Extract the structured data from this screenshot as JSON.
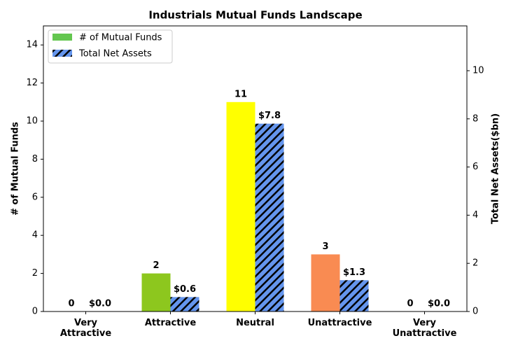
{
  "chart_data": {
    "type": "bar",
    "title": "Industrials Mutual Funds Landscape",
    "categories": [
      "Very\nAttractive",
      "Attractive",
      "Neutral",
      "Unattractive",
      "Very\nUnattractive"
    ],
    "series": [
      {
        "name": "# of Mutual Funds",
        "color": "#63c64f",
        "colors": [
          "#1e9a3a",
          "#8dc71e",
          "#ffff00",
          "#f98b52",
          "#e8302f"
        ],
        "values": [
          0,
          2,
          11,
          3,
          0
        ]
      },
      {
        "name": "Total Net Assets",
        "color": "#6495ed",
        "hatch": true,
        "axis": "y2",
        "values": [
          0.0,
          0.6,
          7.8,
          1.3,
          0.0
        ],
        "value_labels": [
          "$0.0",
          "$0.6",
          "$7.8",
          "$1.3",
          "$0.0"
        ]
      }
    ],
    "ylabel": "# of Mutual Funds",
    "y2label": "Total Net Assets($bn)",
    "ylim": [
      0,
      15
    ],
    "yticks": [
      0,
      2,
      4,
      6,
      8,
      10,
      12,
      14
    ],
    "y2lim": [
      0,
      11.86
    ],
    "y2ticks": [
      0,
      2,
      4,
      6,
      8,
      10
    ],
    "legend": "upper left"
  }
}
